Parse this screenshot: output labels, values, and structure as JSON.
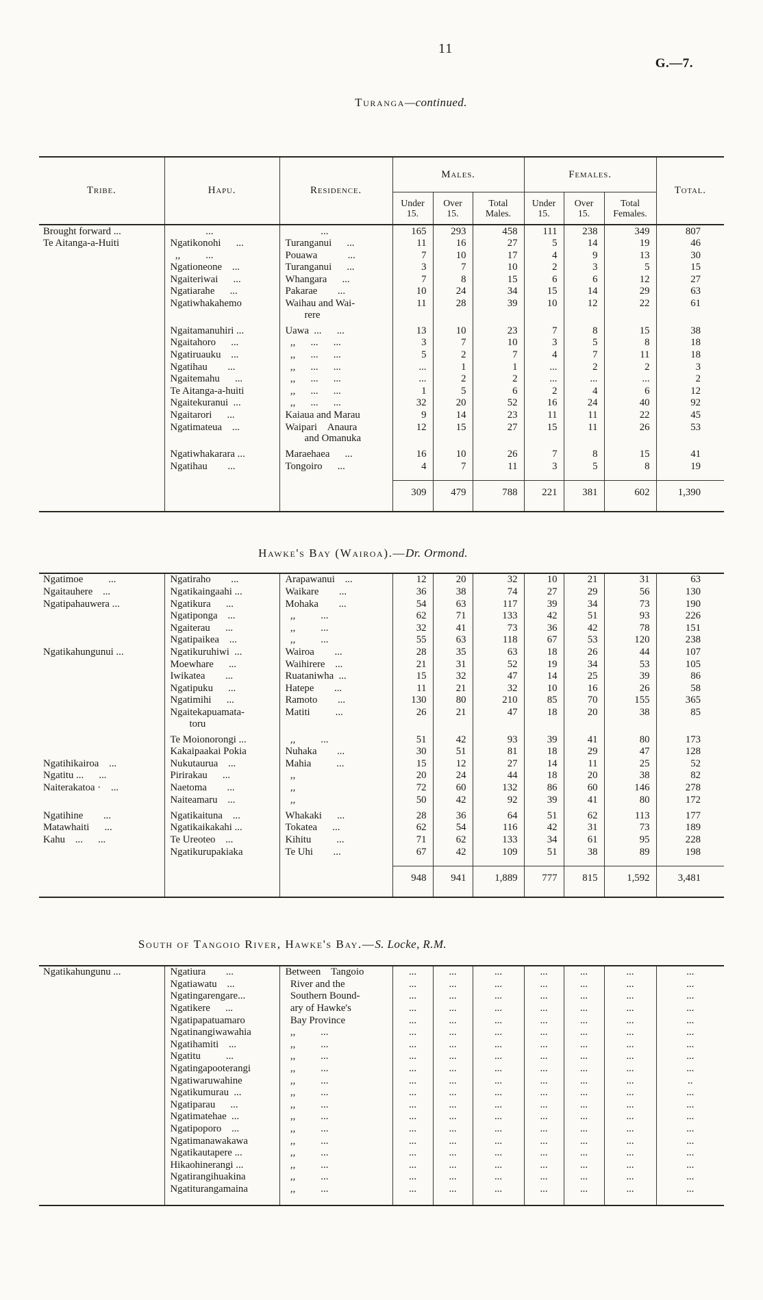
{
  "page": {
    "number": "11",
    "doc_ref": "G.—7."
  },
  "columns": {
    "tribe": "Tribe.",
    "hapu": "Hapu.",
    "residence": "Residence.",
    "males": "Males.",
    "females": "Females.",
    "under15": "Under\n15.",
    "over15": "Over\n15.",
    "total_males": "Total\nMales.",
    "total_females": "Total\nFemales.",
    "total": "Total."
  },
  "sections": [
    {
      "heading_sc": "Turanga",
      "heading_it": "—continued.",
      "rows": [
        [
          "Brought forward ...",
          "    ...",
          "    ...",
          "165",
          "293",
          "458",
          "111",
          "238",
          "349",
          "807"
        ],
        [
          "Te Aitanga-a-Huiti",
          "Ngatikonohi  ...",
          "Turanganui  ...",
          "11",
          "16",
          "27",
          "5",
          "14",
          "19",
          "46"
        ],
        [
          "",
          " ,,   ...",
          "Pouawa   ...",
          "7",
          "10",
          "17",
          "4",
          "9",
          "13",
          "30"
        ],
        [
          "",
          "Ngationeone ...",
          "Turanganui  ...",
          "3",
          "7",
          "10",
          "2",
          "3",
          "5",
          "15"
        ],
        [
          "",
          "Ngaiteriwai  ...",
          "Whangara  ...",
          "7",
          "8",
          "15",
          "6",
          "6",
          "12",
          "27"
        ],
        [
          "",
          "Ngatiarahe  ...",
          "Pakarae  ...",
          "10",
          "24",
          "34",
          "15",
          "14",
          "29",
          "63"
        ],
        [
          "",
          "Ngatiwhakahemo",
          "Waihau and Wai-\nrere",
          "11",
          "28",
          "39",
          "10",
          "12",
          "22",
          "61"
        ],
        [
          "",
          "Ngaitamanuhiri ...",
          "Uawa ...  ...",
          "13",
          "10",
          "23",
          "7",
          "8",
          "15",
          "38"
        ],
        [
          "",
          "Ngaitahoro  ...",
          " ,,  ...  ...",
          "3",
          "7",
          "10",
          "3",
          "5",
          "8",
          "18"
        ],
        [
          "",
          "Ngatiruauku ...",
          " ,,  ...  ...",
          "5",
          "2",
          "7",
          "4",
          "7",
          "11",
          "18"
        ],
        [
          "",
          "Ngatihau  ...",
          " ,,  ...  ...",
          "...",
          "1",
          "1",
          "...",
          "2",
          "2",
          "3"
        ],
        [
          "",
          "Ngaitemahu  ...",
          " ,,  ...  ...",
          "...",
          "2",
          "2",
          "...",
          "...",
          "...",
          "2"
        ],
        [
          "",
          "Te Aitanga-a-huiti",
          " ,,  ...  ...",
          "1",
          "5",
          "6",
          "2",
          "4",
          "6",
          "12"
        ],
        [
          "",
          "Ngaitekuranui ...",
          " ,,  ...  ...",
          "32",
          "20",
          "52",
          "16",
          "24",
          "40",
          "92"
        ],
        [
          "",
          "Ngaitarori  ...",
          "Kaiaua and Marau",
          "9",
          "14",
          "23",
          "11",
          "11",
          "22",
          "45"
        ],
        [
          "",
          "Ngatimateua ...",
          "Waipari  Anaura\nand Omanuka",
          "12",
          "15",
          "27",
          "15",
          "11",
          "26",
          "53"
        ],
        [
          "",
          "Ngatiwhakarara ...",
          "Maraehaea  ...",
          "16",
          "10",
          "26",
          "7",
          "8",
          "15",
          "41"
        ],
        [
          "",
          "Ngatihau  ...",
          "Tongoiro  ...",
          "4",
          "7",
          "11",
          "3",
          "5",
          "8",
          "19"
        ]
      ],
      "totals": [
        "309",
        "479",
        "788",
        "221",
        "381",
        "602",
        "1,390"
      ]
    },
    {
      "heading_sc": "Hawke's Bay (Wairoa).—",
      "heading_it": "Dr. Ormond.",
      "rows": [
        [
          "Ngatimoe   ...",
          "Ngatiraho  ...",
          "Arapawanui ...",
          "12",
          "20",
          "32",
          "10",
          "21",
          "31",
          "63"
        ],
        [
          "Ngaitauhere ...",
          "Ngatikaingaahi ...",
          "Waikare  ...",
          "36",
          "38",
          "74",
          "27",
          "29",
          "56",
          "130"
        ],
        [
          "Ngatipahauwera ...",
          "Ngatikura  ...",
          "Mohaka  ...",
          "54",
          "63",
          "117",
          "39",
          "34",
          "73",
          "190"
        ],
        [
          "",
          "Ngatiponga ...",
          " ,,   ...",
          "62",
          "71",
          "133",
          "42",
          "51",
          "93",
          "226"
        ],
        [
          "",
          "Ngaiterau  ...",
          " ,,   ...",
          "32",
          "41",
          "73",
          "36",
          "42",
          "78",
          "151"
        ],
        [
          "",
          "Ngatipaikea ...",
          " ,,   ...",
          "55",
          "63",
          "118",
          "67",
          "53",
          "120",
          "238"
        ],
        [
          "Ngatikahungunui ...",
          "Ngatikuruhiwi ...",
          "Wairoa  ...",
          "28",
          "35",
          "63",
          "18",
          "26",
          "44",
          "107"
        ],
        [
          "",
          "Moewhare  ...",
          "Waihirere ...",
          "21",
          "31",
          "52",
          "19",
          "34",
          "53",
          "105"
        ],
        [
          "",
          "Iwikatea  ...",
          "Ruataniwha ...",
          "15",
          "32",
          "47",
          "14",
          "25",
          "39",
          "86"
        ],
        [
          "",
          "Ngatipuku  ...",
          "Hatepe  ...",
          "11",
          "21",
          "32",
          "10",
          "16",
          "26",
          "58"
        ],
        [
          "",
          "Ngatimihi  ...",
          "Ramoto  ...",
          "130",
          "80",
          "210",
          "85",
          "70",
          "155",
          "365"
        ],
        [
          "",
          "Ngaitekapuamata-\ntoru",
          "Matiti   ...",
          "26",
          "21",
          "47",
          "18",
          "20",
          "38",
          "85"
        ],
        [
          "",
          "Te Moionorongi ...",
          " ,,   ...",
          "51",
          "42",
          "93",
          "39",
          "41",
          "80",
          "173"
        ],
        [
          "",
          "Kakaipaakai Pokia",
          "Nuhaka  ...",
          "30",
          "51",
          "81",
          "18",
          "29",
          "47",
          "128"
        ],
        [
          "Ngatihikairoa ...",
          "Nukutaurua ...",
          "Mahia   ...",
          "15",
          "12",
          "27",
          "14",
          "11",
          "25",
          "52"
        ],
        [
          "Ngatitu ...  ...",
          "Pirirakau  ...",
          " ,,",
          "20",
          "24",
          "44",
          "18",
          "20",
          "38",
          "82"
        ],
        [
          "Naiterakatoa · ...",
          "Naetoma  ...",
          " ,,",
          "72",
          "60",
          "132",
          "86",
          "60",
          "146",
          "278"
        ],
        [
          "",
          "Naiteamaru ...",
          " ,,",
          "50",
          "42",
          "92",
          "39",
          "41",
          "80",
          "172"
        ],
        [
          "Ngatihine  ...",
          "Ngatikaituna ...",
          "Whakaki  ...",
          "28",
          "36",
          "64",
          "51",
          "62",
          "113",
          "177"
        ],
        [
          "Matawhaiti  ...",
          "Ngatikaikakahi ...",
          "Tokatea  ...",
          "62",
          "54",
          "116",
          "42",
          "31",
          "73",
          "189"
        ],
        [
          "Kahu  ...  ...",
          "Te Ureoteo ...",
          "Kihitu   ...",
          "71",
          "62",
          "133",
          "34",
          "61",
          "95",
          "228"
        ],
        [
          "",
          "Ngatikurupakiaka",
          "Te Uhi  ...",
          "67",
          "42",
          "109",
          "51",
          "38",
          "89",
          "198"
        ]
      ],
      "totals": [
        "948",
        "941",
        "1,889",
        "777",
        "815",
        "1,592",
        "3,481"
      ]
    },
    {
      "heading_sc": "South of Tangoio River, Hawke's Bay.—",
      "heading_it": "S. Locke, R.M.",
      "rows": [
        [
          "Ngatikahungunu ...",
          "Ngatiura  ...",
          "Between Tangoio",
          "...",
          "...",
          "...",
          "...",
          "...",
          "...",
          "..."
        ],
        [
          "",
          "Ngatiawatu ...",
          " River and the",
          "...",
          "...",
          "...",
          "...",
          "...",
          "...",
          "..."
        ],
        [
          "",
          "Ngatingarengare...",
          " Southern Bound-",
          "...",
          "...",
          "...",
          "...",
          "...",
          "...",
          "..."
        ],
        [
          "",
          "Ngatikere  ...",
          " ary of Hawke's",
          "...",
          "...",
          "...",
          "...",
          "...",
          "...",
          "..."
        ],
        [
          "",
          "Ngatipapatuamaro",
          " Bay Province",
          "...",
          "...",
          "...",
          "...",
          "...",
          "...",
          "..."
        ],
        [
          "",
          "Ngatinangiwawahia",
          " ,,   ...",
          "...",
          "...",
          "...",
          "...",
          "...",
          "...",
          "..."
        ],
        [
          "",
          "Ngatihamiti ...",
          " ,,   ...",
          "...",
          "...",
          "...",
          "...",
          "...",
          "...",
          "..."
        ],
        [
          "",
          "Ngatitu   ...",
          " ,,   ...",
          "...",
          "...",
          "...",
          "...",
          "...",
          "...",
          "..."
        ],
        [
          "",
          "Ngatingapooterangi",
          " ,,   ...",
          "...",
          "...",
          "...",
          "...",
          "...",
          "...",
          "..."
        ],
        [
          "",
          "Ngatiwaruwahine",
          " ,,   ...",
          "...",
          "...",
          "...",
          "...",
          "...",
          "...",
          ".."
        ],
        [
          "",
          "Ngatikumurau ...",
          " ,,   ...",
          "...",
          "...",
          "...",
          "...",
          "...",
          "...",
          "..."
        ],
        [
          "",
          "Ngatiparau  ...",
          " ,,   ...",
          "...",
          "...",
          "...",
          "...",
          "...",
          "...",
          "..."
        ],
        [
          "",
          "Ngatimatehae ...",
          " ,,   ...",
          "...",
          "...",
          "...",
          "...",
          "...",
          "...",
          "..."
        ],
        [
          "",
          "Ngatipoporo ...",
          " ,,   ...",
          "...",
          "...",
          "...",
          "...",
          "...",
          "...",
          "..."
        ],
        [
          "",
          "Ngatimanawakawa",
          " ,,   ...",
          "...",
          "...",
          "...",
          "...",
          "...",
          "...",
          "..."
        ],
        [
          "",
          "Ngatikautapere ...",
          " ,,   ...",
          "...",
          "...",
          "...",
          "...",
          "...",
          "...",
          "..."
        ],
        [
          "",
          "Hikaohinerangi ...",
          " ,,   ...",
          "...",
          "...",
          "...",
          "...",
          "...",
          "...",
          "..."
        ],
        [
          "",
          "Ngatirangihuakina",
          " ,,   ...",
          "...",
          "...",
          "...",
          "...",
          "...",
          "...",
          "..."
        ],
        [
          "",
          "Ngatiturangamaina",
          " ,,   ...",
          "...",
          "...",
          "...",
          "...",
          "...",
          "...",
          "..."
        ]
      ]
    }
  ]
}
